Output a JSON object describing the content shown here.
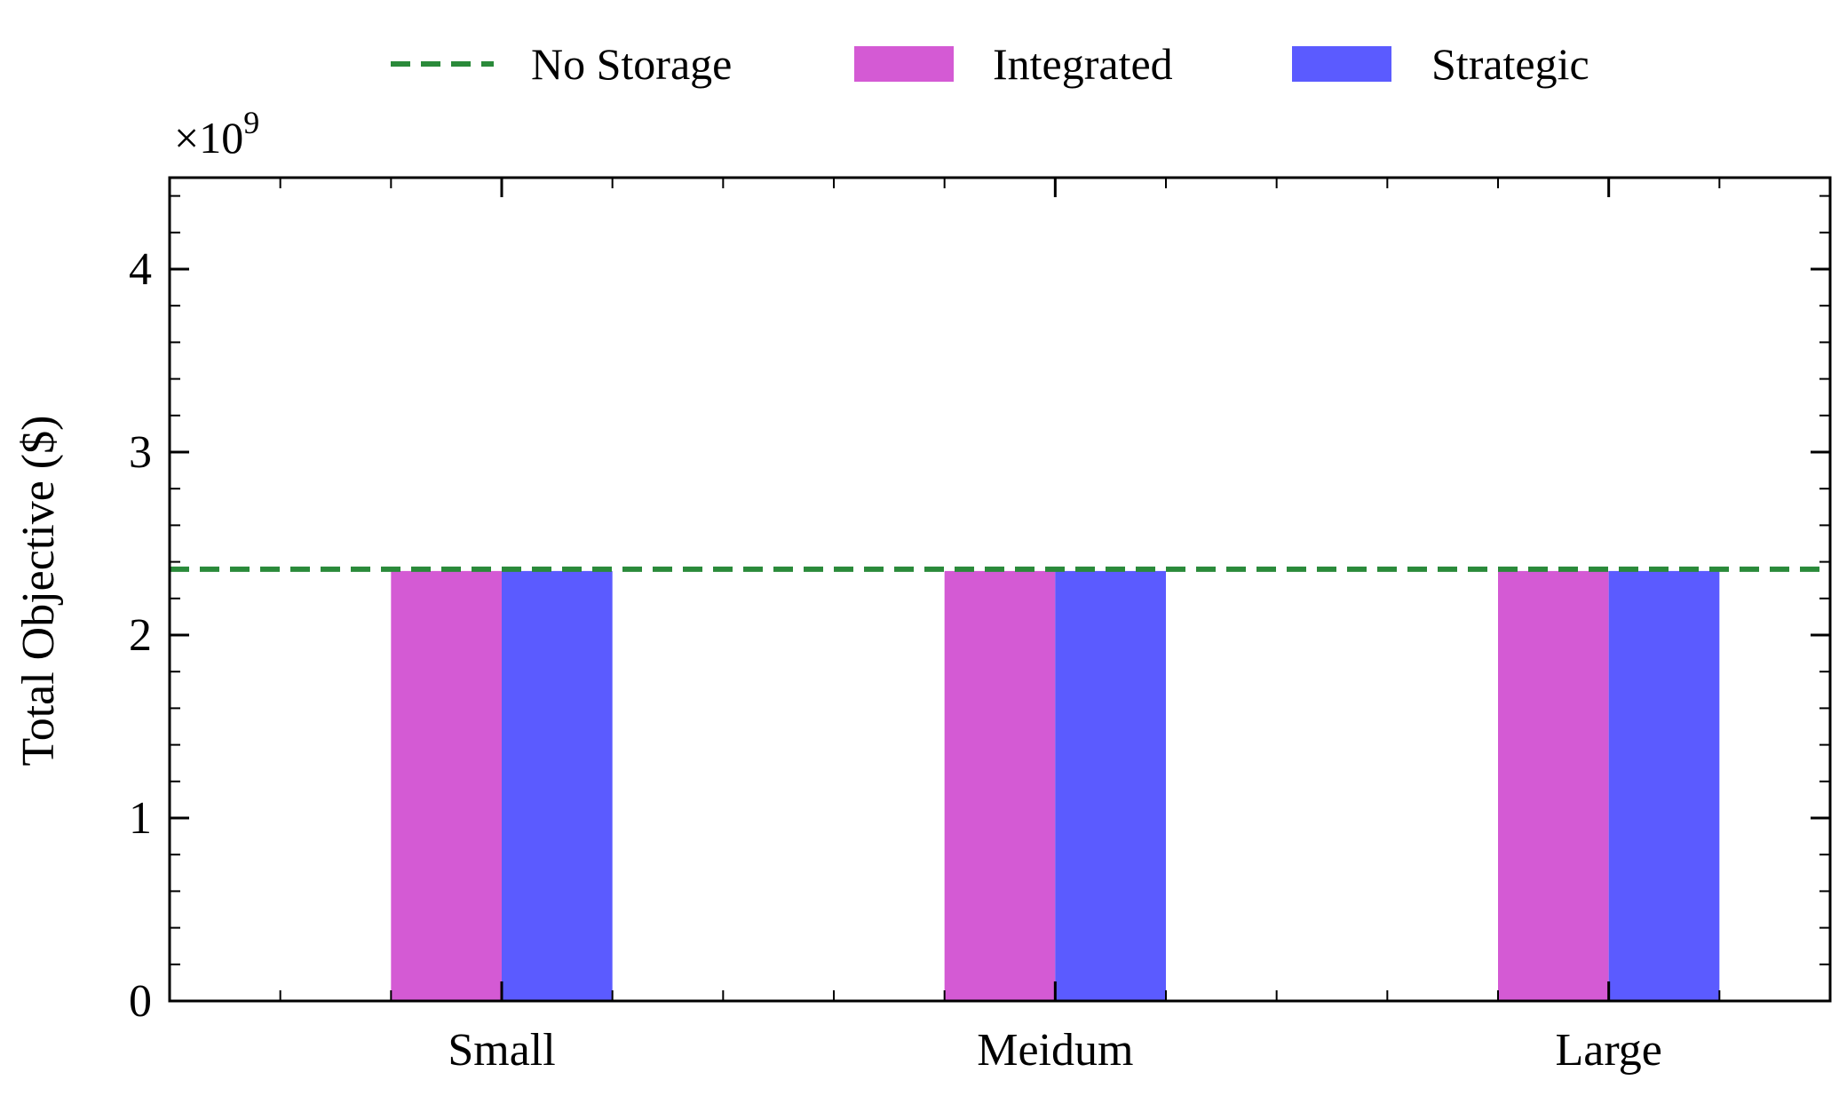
{
  "chart_data": {
    "type": "bar",
    "categories": [
      "Small",
      "Meidum",
      "Large"
    ],
    "series": [
      {
        "name": "Integrated",
        "values": [
          2.35,
          2.35,
          2.35
        ],
        "color": "#d45ad4"
      },
      {
        "name": "Strategic",
        "values": [
          2.35,
          2.35,
          2.35
        ],
        "color": "#5b5bff"
      }
    ],
    "reference_line": {
      "name": "No Storage",
      "value": 2.36,
      "color": "#2a8a3a",
      "style": "dashed"
    },
    "ylabel": "Total Objective ($)",
    "xlabel": "",
    "ylim": [
      0,
      4.5
    ],
    "yticks": [
      0,
      1,
      2,
      3,
      4
    ],
    "y_scale_label": {
      "base": "×10",
      "exponent": "9"
    },
    "legend_position": "top-center",
    "grid": false
  }
}
